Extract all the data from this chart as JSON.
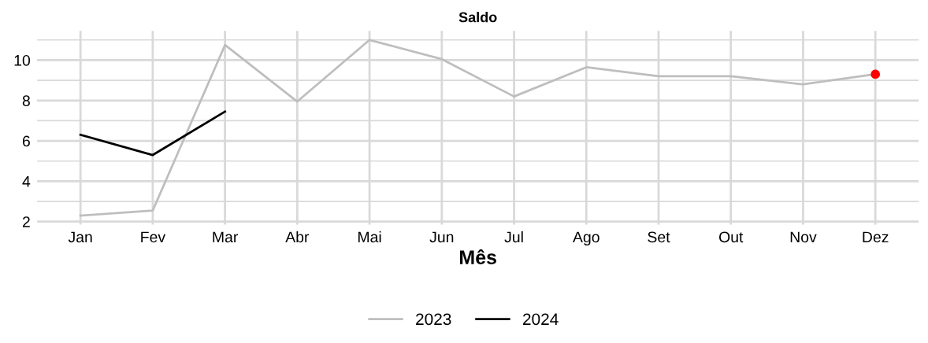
{
  "chart_data": {
    "type": "line",
    "title": "Saldo",
    "xlabel": "Mês",
    "categories": [
      "Jan",
      "Fev",
      "Mar",
      "Abr",
      "Mai",
      "Jun",
      "Jul",
      "Ago",
      "Set",
      "Out",
      "Nov",
      "Dez"
    ],
    "series": [
      {
        "name": "2023",
        "color": "#bebebe",
        "values": [
          2.3,
          2.55,
          10.75,
          7.95,
          11.0,
          10.05,
          8.2,
          9.65,
          9.2,
          9.2,
          8.8,
          9.3
        ]
      },
      {
        "name": "2024",
        "color": "#000000",
        "values": [
          6.3,
          5.3,
          7.45,
          null,
          null,
          null,
          null,
          null,
          null,
          null,
          null,
          null
        ]
      },
      {
        "type": "scatter",
        "marker": "circle",
        "color": "#ff0000",
        "values": [
          null,
          null,
          null,
          null,
          null,
          null,
          null,
          null,
          null,
          null,
          null,
          9.3
        ]
      }
    ],
    "ylim": [
      1.85,
      11.45
    ],
    "yticks": [
      2,
      {
        "value": 3,
        "label": null
      },
      4,
      {
        "value": 5,
        "label": null
      },
      6,
      {
        "value": 7,
        "label": null
      },
      8,
      {
        "value": 9,
        "label": null
      },
      10,
      {
        "value": 11,
        "label": null
      }
    ],
    "grid": true,
    "legend": "bottom",
    "marker": "none",
    "line_style": "solid"
  }
}
